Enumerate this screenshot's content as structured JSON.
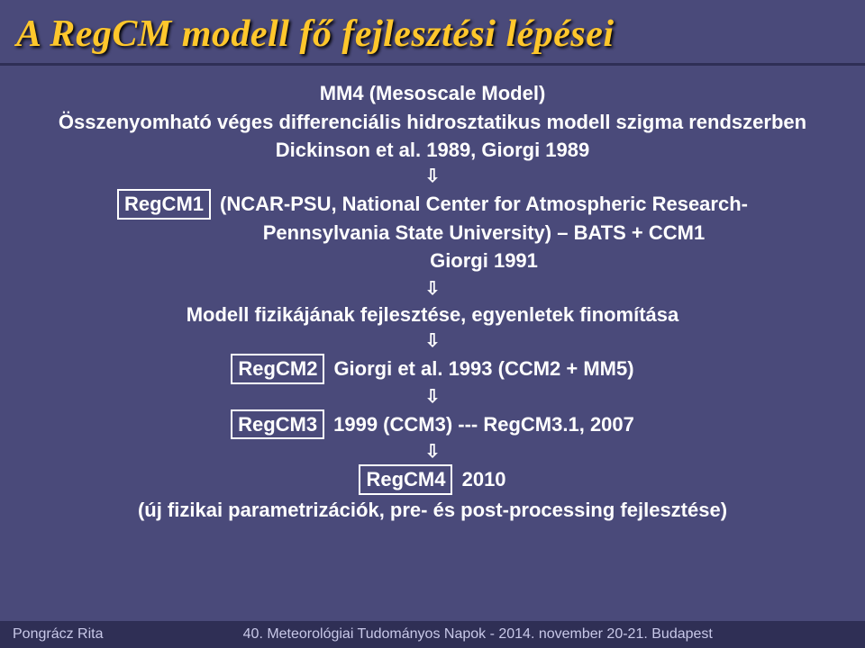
{
  "colors": {
    "bg": "#4a4a7a",
    "title": "#ffc72c",
    "rule": "#2f2f55",
    "text": "#ffffff",
    "footer_bg": "#2f2f55",
    "footer_text": "#c8c8e8"
  },
  "title": "A RegCM modell fő fejlesztési lépései",
  "intro": {
    "l1": "MM4 (Mesoscale Model)",
    "l2": "Összenyomható véges differenciális hidrosztatikus modell szigma rendszerben",
    "l3": "Dickinson et al. 1989, Giorgi 1989"
  },
  "step1": {
    "box": "RegCM1",
    "l1": "(NCAR-PSU, National Center for Atmospheric Research-",
    "l2": "Pennsylvania State University) – BATS + CCM1",
    "l3": "Giorgi 1991"
  },
  "step2": "Modell fizikájának fejlesztése, egyenletek finomítása",
  "step3": {
    "box": "RegCM2",
    "text": "Giorgi et al. 1993 (CCM2 + MM5)"
  },
  "step4": {
    "box": "RegCM3",
    "text": "1999 (CCM3)  ---  RegCM3.1, 2007"
  },
  "step5": {
    "box": "RegCM4",
    "text": "2010",
    "sub": "(új fizikai parametrizációk, pre- és post-processing fejlesztése)"
  },
  "footer": {
    "author": "Pongrácz Rita",
    "conf": "40. Meteorológiai Tudományos Napok   -   2014. november 20-21. Budapest"
  },
  "typography": {
    "title_fontsize": 42,
    "body_fontsize": 22,
    "footer_fontsize": 16
  }
}
